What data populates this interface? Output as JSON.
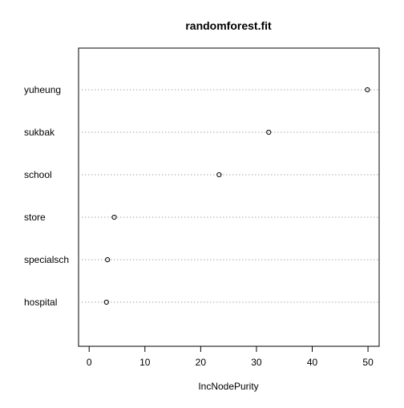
{
  "chart_data": {
    "type": "scatter",
    "title": "randomforest.fit",
    "xlabel": "IncNodePurity",
    "ylabel": "",
    "xlim": [
      -1.9,
      52.0
    ],
    "xticks": [
      0,
      10,
      20,
      30,
      40,
      50
    ],
    "categories": [
      "hospital",
      "specialsch",
      "store",
      "school",
      "sukbak",
      "yuheung"
    ],
    "values": [
      3.1,
      3.3,
      4.5,
      23.3,
      32.2,
      49.9
    ],
    "grid": "dotted horizontal lines per category",
    "legend": "none"
  }
}
